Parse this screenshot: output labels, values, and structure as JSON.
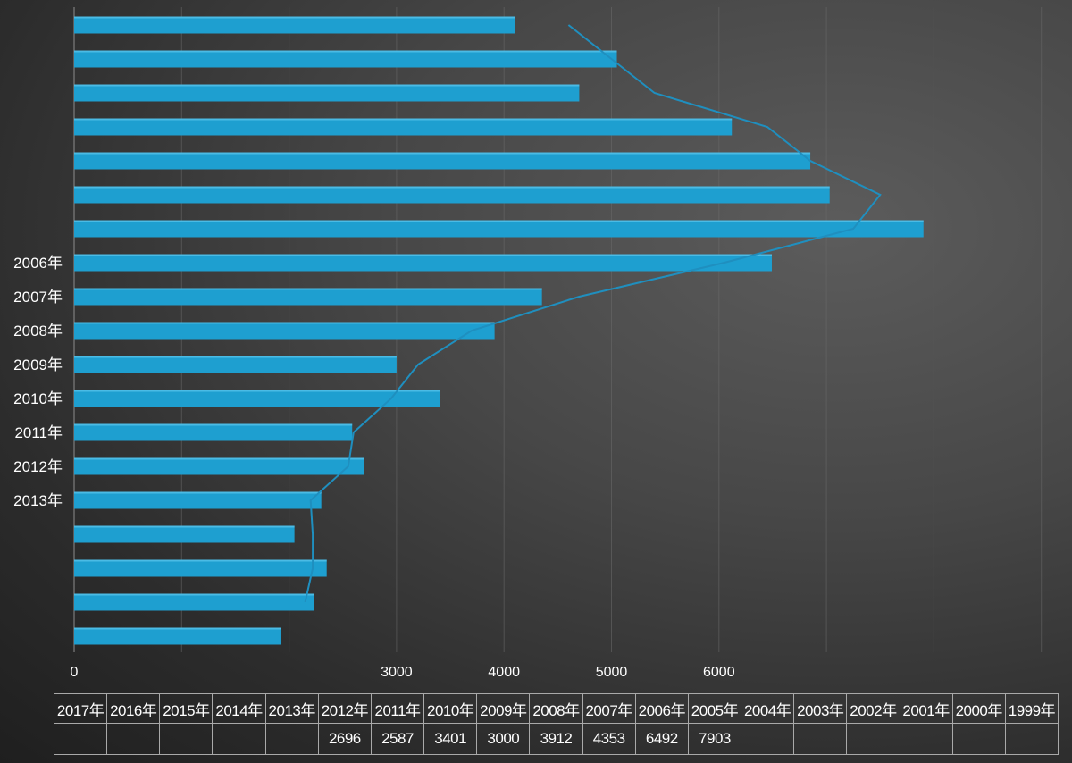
{
  "chart_data": {
    "type": "bar",
    "orientation": "horizontal",
    "y_categories": [
      "",
      "",
      "",
      "",
      "",
      "",
      "",
      "2006年",
      "2007年",
      "2008年",
      "2009年",
      "2010年",
      "2011年",
      "2012年",
      "2013年",
      "",
      "",
      "",
      ""
    ],
    "y_categories_legible": {
      "7": "2006年",
      "8": "2007年",
      "9": "2008年",
      "10": "2009年",
      "11": "2010年",
      "12": "2011年",
      "13": "2012年",
      "14": "2013年"
    },
    "bar_values": [
      4100,
      5050,
      4700,
      6120,
      6850,
      7030,
      7903,
      6492,
      4353,
      3912,
      3000,
      3401,
      2587,
      2696,
      2300,
      2050,
      2350,
      2230,
      1920
    ],
    "line_values": [
      4600,
      5000,
      5400,
      6450,
      6850,
      7500,
      7250,
      6050,
      4700,
      3700,
      3200,
      2950,
      2600,
      2550,
      2200,
      2220,
      2220,
      2150,
      null
    ],
    "x_ticks": [
      "0",
      "",
      "",
      "3000",
      "4000",
      "5000",
      "6000",
      "",
      "",
      ""
    ],
    "x_tick_values": [
      0,
      1000,
      2000,
      3000,
      4000,
      5000,
      6000,
      7000,
      8000,
      9000
    ],
    "xlim": [
      0,
      9000
    ],
    "grid": true,
    "bar_color": "#1e9fd0",
    "line_color": "#1f8fbf",
    "table": {
      "years": [
        "2017年",
        "2016年",
        "2015年",
        "2014年",
        "2013年",
        "2012年",
        "2011年",
        "2010年",
        "2009年",
        "2008年",
        "2007年",
        "2006年",
        "2005年",
        "2004年",
        "2003年",
        "2002年",
        "2001年",
        "2000年",
        "1999年"
      ],
      "values": [
        "",
        "",
        "",
        "",
        "",
        "2696",
        "2587",
        "3401",
        "3000",
        "3912",
        "4353",
        "6492",
        "7903",
        "",
        "",
        "",
        "",
        "",
        ""
      ]
    }
  }
}
